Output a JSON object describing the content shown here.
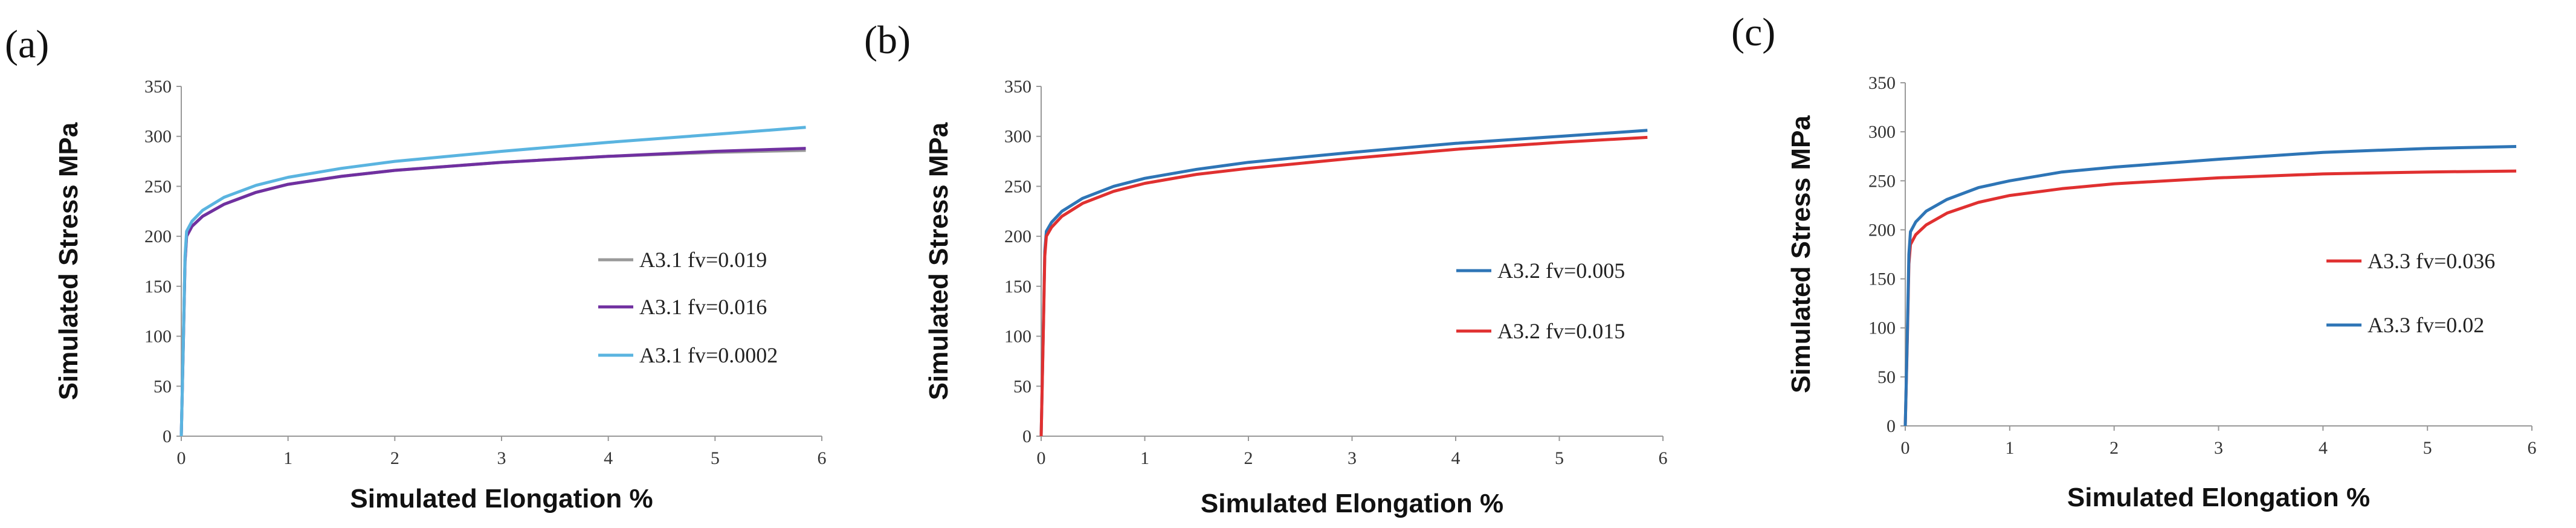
{
  "chart_data": [
    {
      "type": "line",
      "panel_label": "(a)",
      "xlabel": "Simulated Elongation %",
      "ylabel": "Simulated Stress MPa",
      "xlim": [
        0,
        6
      ],
      "ylim": [
        0,
        350
      ],
      "xticks": [
        0,
        1,
        2,
        3,
        4,
        5,
        6
      ],
      "yticks": [
        0,
        50,
        100,
        150,
        200,
        250,
        300,
        350
      ],
      "grid": false,
      "legend_position": "right-middle",
      "series": [
        {
          "name": "A3.1 fv=0.019",
          "color": "#999999",
          "yield": 175,
          "curve": [
            [
              0.05,
              200
            ],
            [
              0.1,
              210
            ],
            [
              0.2,
              220
            ],
            [
              0.4,
              232
            ],
            [
              0.7,
              244
            ],
            [
              1,
              252
            ],
            [
              1.5,
              260
            ],
            [
              2,
              266
            ],
            [
              3,
              274
            ],
            [
              4,
              280
            ],
            [
              5,
              284
            ],
            [
              5.85,
              286
            ]
          ]
        },
        {
          "name": "A3.1 fv=0.016",
          "color": "#7030a0",
          "yield": 175,
          "curve": [
            [
              0.05,
              200
            ],
            [
              0.1,
              210
            ],
            [
              0.2,
              220
            ],
            [
              0.4,
              232
            ],
            [
              0.7,
              244
            ],
            [
              1,
              252
            ],
            [
              1.5,
              260
            ],
            [
              2,
              266
            ],
            [
              3,
              274
            ],
            [
              4,
              280
            ],
            [
              5,
              285
            ],
            [
              5.85,
              288
            ]
          ]
        },
        {
          "name": "A3.1 fv=0.0002",
          "color": "#5ab4e0",
          "yield": 180,
          "curve": [
            [
              0.05,
              205
            ],
            [
              0.1,
              215
            ],
            [
              0.2,
              226
            ],
            [
              0.4,
              239
            ],
            [
              0.7,
              251
            ],
            [
              1,
              259
            ],
            [
              1.5,
              268
            ],
            [
              2,
              275
            ],
            [
              3,
              285
            ],
            [
              4,
              294
            ],
            [
              5,
              302
            ],
            [
              5.85,
              309
            ]
          ]
        }
      ]
    },
    {
      "type": "line",
      "panel_label": "(b)",
      "xlabel": "Simulated Elongation %",
      "ylabel": "Simulated Stress MPa",
      "xlim": [
        0,
        6
      ],
      "ylim": [
        0,
        350
      ],
      "xticks": [
        0,
        1,
        2,
        3,
        4,
        5,
        6
      ],
      "yticks": [
        0,
        50,
        100,
        150,
        200,
        250,
        300,
        350
      ],
      "grid": false,
      "legend_position": "right-middle",
      "series": [
        {
          "name": "A3.2 fv=0.005",
          "color": "#2e75b6",
          "yield": 185,
          "curve": [
            [
              0.05,
              205
            ],
            [
              0.1,
              214
            ],
            [
              0.2,
              225
            ],
            [
              0.4,
              238
            ],
            [
              0.7,
              250
            ],
            [
              1,
              258
            ],
            [
              1.5,
              267
            ],
            [
              2,
              274
            ],
            [
              3,
              284
            ],
            [
              4,
              293
            ],
            [
              5,
              300
            ],
            [
              5.85,
              306
            ]
          ]
        },
        {
          "name": "A3.2 fv=0.015",
          "color": "#e03030",
          "yield": 180,
          "curve": [
            [
              0.05,
              200
            ],
            [
              0.1,
              209
            ],
            [
              0.2,
              220
            ],
            [
              0.4,
              233
            ],
            [
              0.7,
              245
            ],
            [
              1,
              253
            ],
            [
              1.5,
              262
            ],
            [
              2,
              268
            ],
            [
              3,
              278
            ],
            [
              4,
              287
            ],
            [
              5,
              294
            ],
            [
              5.85,
              299
            ]
          ]
        }
      ]
    },
    {
      "type": "line",
      "panel_label": "(c)",
      "xlabel": "Simulated Elongation %",
      "ylabel": "Simulated Stress MPa",
      "xlim": [
        0,
        6
      ],
      "ylim": [
        0,
        350
      ],
      "xticks": [
        0,
        1,
        2,
        3,
        4,
        5,
        6
      ],
      "yticks": [
        0,
        50,
        100,
        150,
        200,
        250,
        300,
        350
      ],
      "grid": false,
      "legend_position": "right-middle",
      "series": [
        {
          "name": "A3.3 fv=0.036",
          "color": "#e03030",
          "yield": 165,
          "curve": [
            [
              0.05,
              185
            ],
            [
              0.1,
              195
            ],
            [
              0.2,
              205
            ],
            [
              0.4,
              217
            ],
            [
              0.7,
              228
            ],
            [
              1,
              235
            ],
            [
              1.5,
              242
            ],
            [
              2,
              247
            ],
            [
              3,
              253
            ],
            [
              4,
              257
            ],
            [
              5,
              259
            ],
            [
              5.85,
              260
            ]
          ]
        },
        {
          "name": "A3.3 fv=0.02",
          "color": "#2e75b6",
          "yield": 175,
          "curve": [
            [
              0.05,
              198
            ],
            [
              0.1,
              208
            ],
            [
              0.2,
              219
            ],
            [
              0.4,
              231
            ],
            [
              0.7,
              243
            ],
            [
              1,
              250
            ],
            [
              1.5,
              259
            ],
            [
              2,
              264
            ],
            [
              3,
              272
            ],
            [
              4,
              279
            ],
            [
              5,
              283
            ],
            [
              5.85,
              285
            ]
          ]
        }
      ]
    }
  ]
}
